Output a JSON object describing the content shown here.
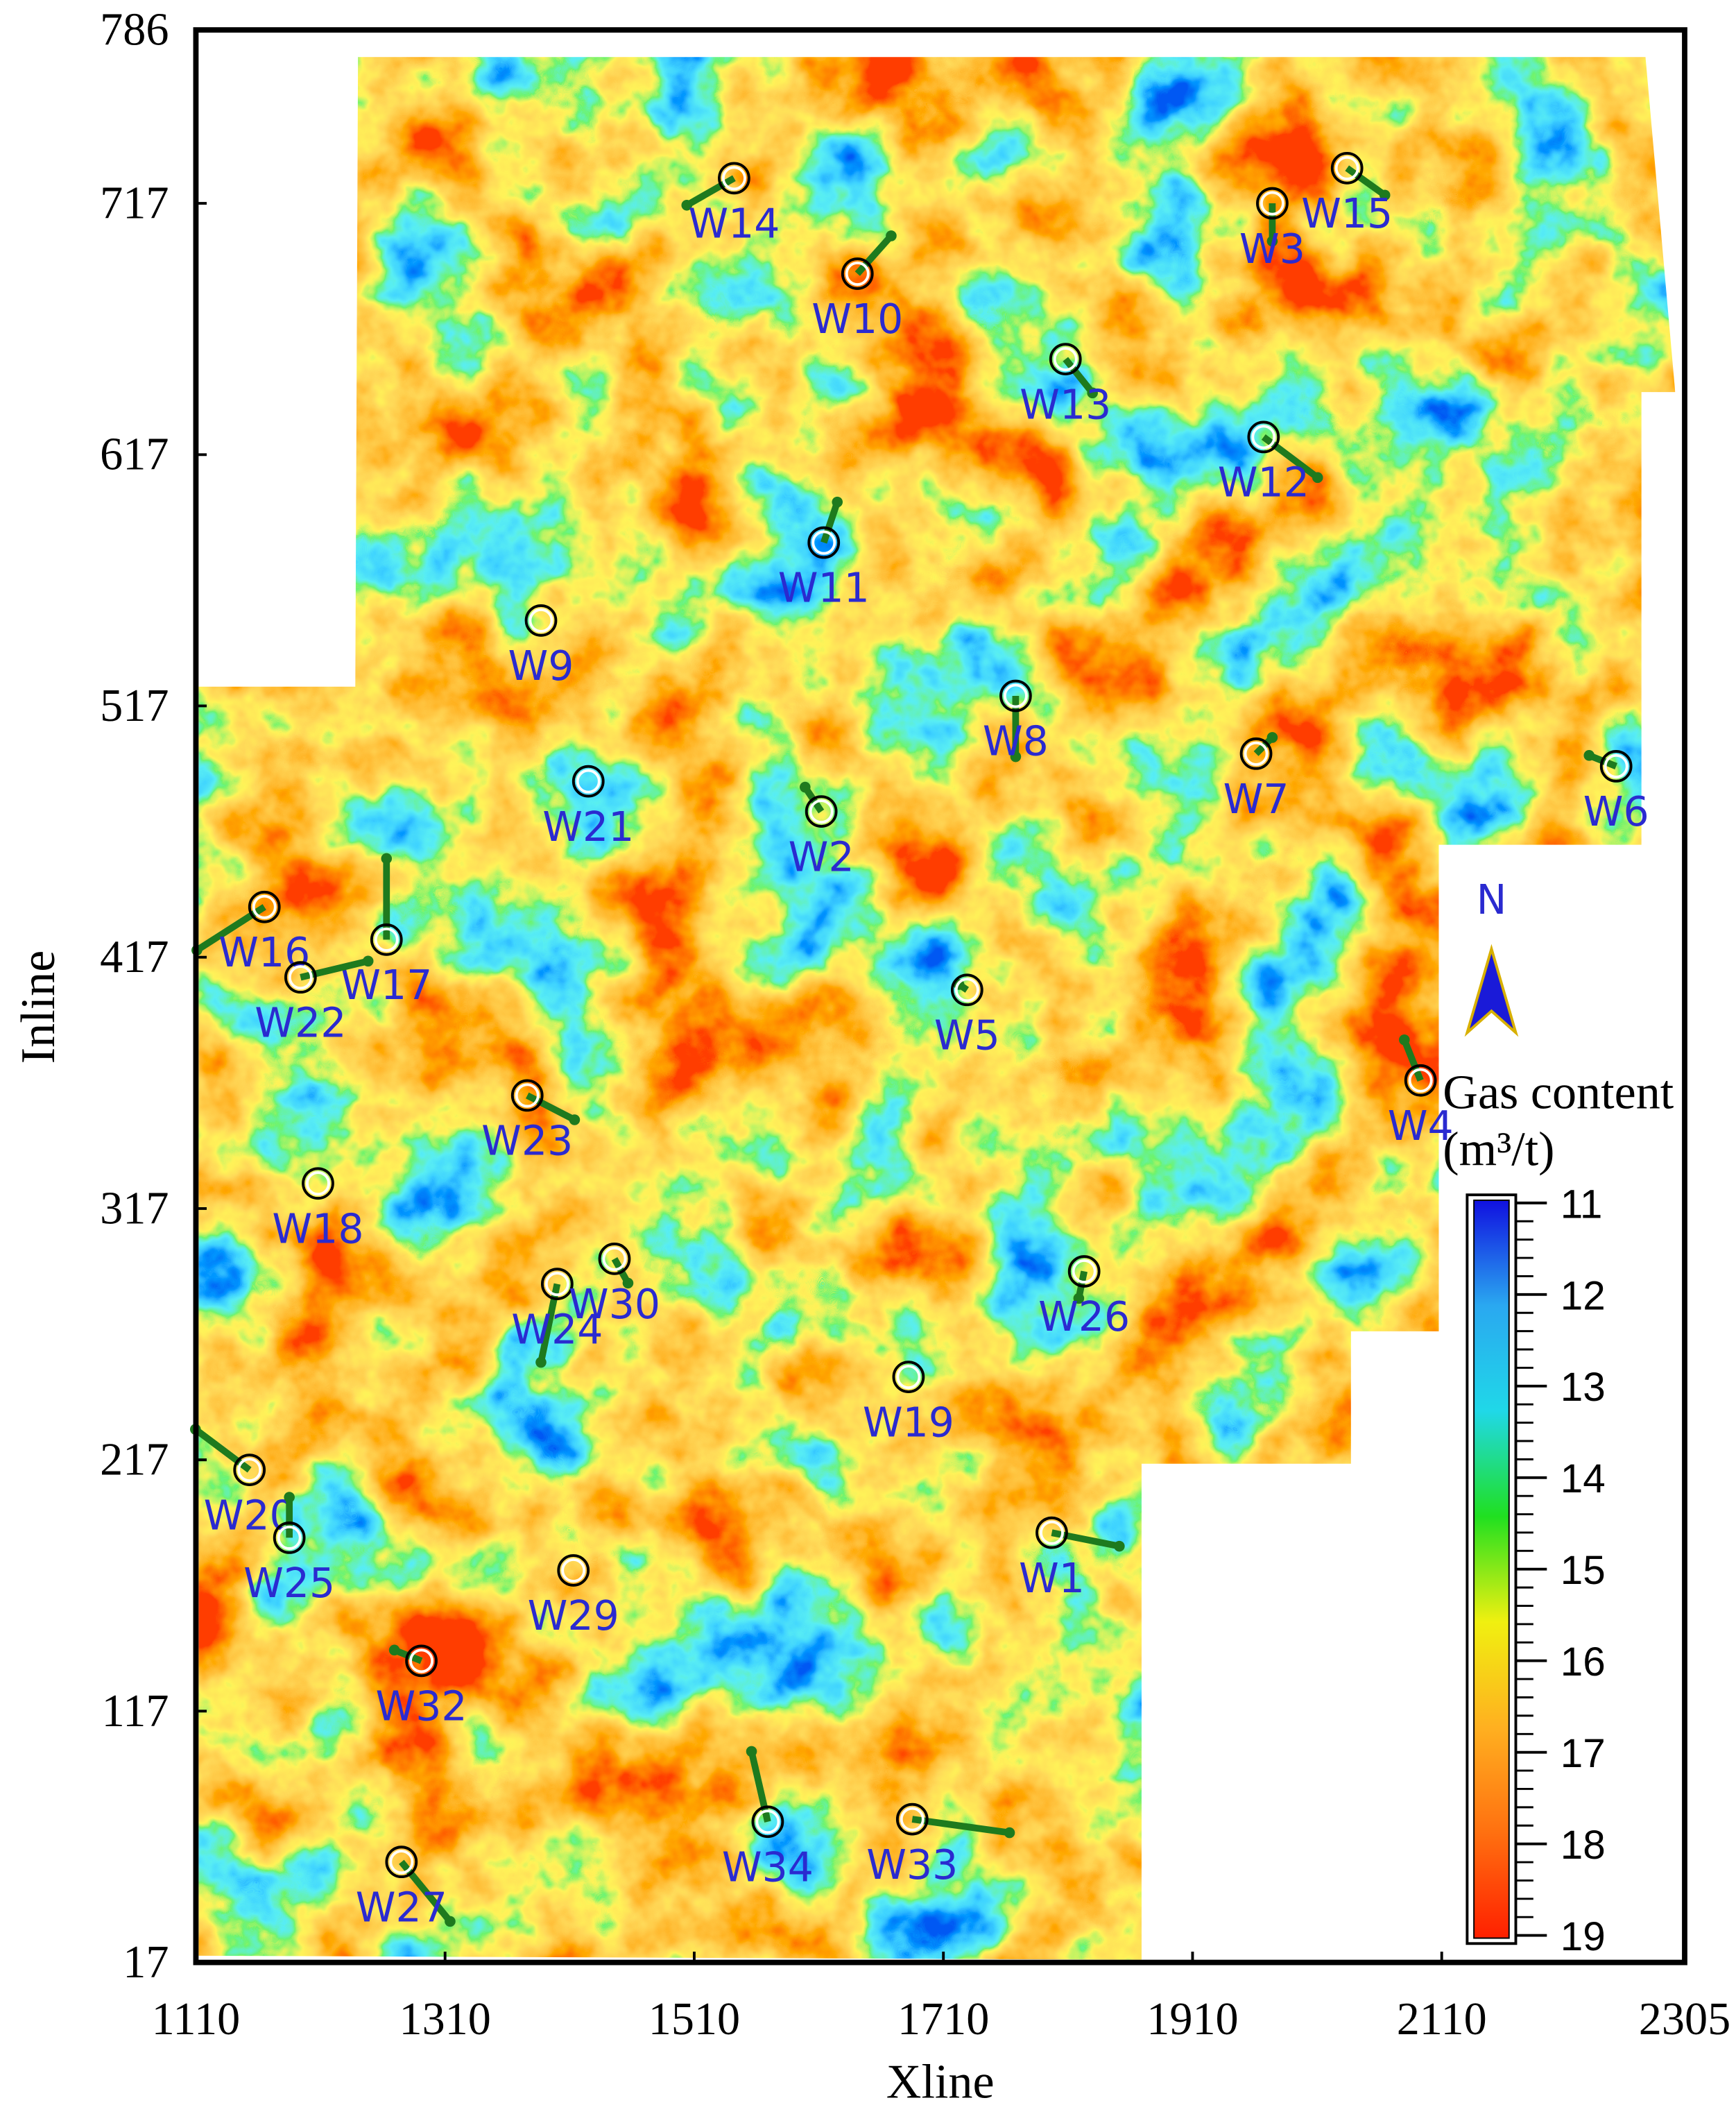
{
  "chart_data": {
    "type": "scatter",
    "x_label": "Xline",
    "y_label": "Inline",
    "xlim": [
      1110,
      2305
    ],
    "xticks": [
      1110,
      1310,
      1510,
      1710,
      1910,
      2110,
      2305
    ],
    "ylim": [
      17,
      786
    ],
    "yticks": [
      17,
      117,
      217,
      317,
      417,
      517,
      617,
      717,
      786
    ],
    "marker_color": "#000000",
    "label_color": "#2a2ad0",
    "points": [
      {
        "label": "W14",
        "x": 1542,
        "y": 727
      },
      {
        "label": "W10",
        "x": 1641,
        "y": 689
      },
      {
        "label": "W15",
        "x": 2034,
        "y": 731
      },
      {
        "label": "W3",
        "x": 1974,
        "y": 717
      },
      {
        "label": "W13",
        "x": 1808,
        "y": 655
      },
      {
        "label": "W12",
        "x": 1967,
        "y": 624
      },
      {
        "label": "W11",
        "x": 1614,
        "y": 582
      },
      {
        "label": "W9",
        "x": 1387,
        "y": 551
      },
      {
        "label": "W8",
        "x": 1768,
        "y": 521
      },
      {
        "label": "W7",
        "x": 1961,
        "y": 498
      },
      {
        "label": "W6",
        "x": 2250,
        "y": 493
      },
      {
        "label": "W21",
        "x": 1425,
        "y": 487
      },
      {
        "label": "W2",
        "x": 1612,
        "y": 475
      },
      {
        "label": "W16",
        "x": 1165,
        "y": 437
      },
      {
        "label": "W17",
        "x": 1263,
        "y": 424
      },
      {
        "label": "W22",
        "x": 1194,
        "y": 409
      },
      {
        "label": "W5",
        "x": 1729,
        "y": 404
      },
      {
        "label": "W23",
        "x": 1376,
        "y": 362
      },
      {
        "label": "W4",
        "x": 2093,
        "y": 368
      },
      {
        "label": "W18",
        "x": 1208,
        "y": 327
      },
      {
        "label": "W26",
        "x": 1823,
        "y": 292
      },
      {
        "label": "W24",
        "x": 1400,
        "y": 287
      },
      {
        "label": "W30",
        "x": 1446,
        "y": 297
      },
      {
        "label": "W19",
        "x": 1682,
        "y": 250
      },
      {
        "label": "W20",
        "x": 1153,
        "y": 213
      },
      {
        "label": "W25",
        "x": 1185,
        "y": 186
      },
      {
        "label": "W1",
        "x": 1797,
        "y": 188
      },
      {
        "label": "W29",
        "x": 1413,
        "y": 173
      },
      {
        "label": "W32",
        "x": 1291,
        "y": 137
      },
      {
        "label": "W34",
        "x": 1569,
        "y": 73
      },
      {
        "label": "W33",
        "x": 1685,
        "y": 74
      },
      {
        "label": "W27",
        "x": 1275,
        "y": 57
      }
    ],
    "north_label": "N",
    "colorbar": {
      "label": [
        "Gas content",
        "(m³/t)"
      ],
      "lim": [
        11,
        19
      ],
      "ticks": [
        11,
        12,
        13,
        14,
        15,
        16,
        17,
        18,
        19
      ],
      "colors": [
        "#1010e0",
        "#2aa8f0",
        "#20d8e8",
        "#20e020",
        "#f0f010",
        "#ffb020",
        "#ff7010",
        "#ff2000"
      ]
    }
  }
}
